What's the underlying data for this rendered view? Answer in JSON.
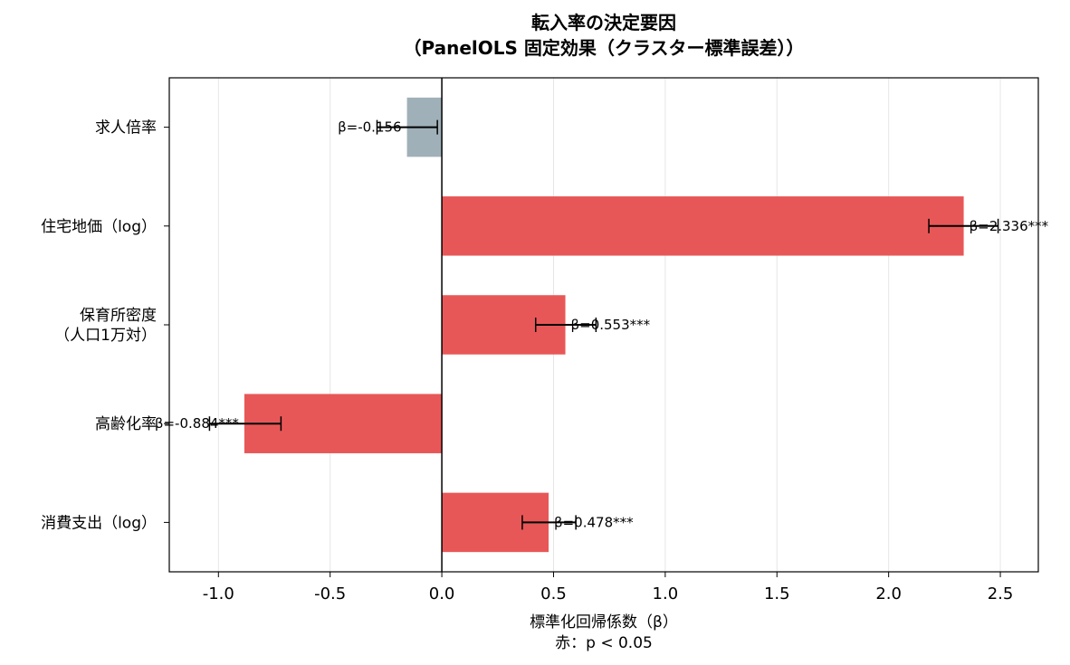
{
  "chart_data": {
    "type": "bar",
    "orientation": "horizontal",
    "title": "転入率の決定要因",
    "subtitle": "（PanelOLS 固定効果（クラスター標準誤差））",
    "xlabel": "標準化回帰係数（β）",
    "xlabel_note": "赤：p < 0.05",
    "xlim": [
      -1.22,
      2.67
    ],
    "xticks": [
      "-1.0",
      "-0.5",
      "0.0",
      "0.5",
      "1.0",
      "1.5",
      "2.0",
      "2.5"
    ],
    "xtick_values": [
      -1.0,
      -0.5,
      0.0,
      0.5,
      1.0,
      1.5,
      2.0,
      2.5
    ],
    "grid": "x",
    "categories": [
      {
        "lines": [
          "求人倍率"
        ]
      },
      {
        "lines": [
          "住宅地価（log）"
        ]
      },
      {
        "lines": [
          "保育所密度",
          "（人口1万対）"
        ]
      },
      {
        "lines": [
          "高齢化率"
        ]
      },
      {
        "lines": [
          "消費支出（log）"
        ]
      }
    ],
    "values": [
      -0.156,
      2.336,
      0.553,
      -0.884,
      0.478
    ],
    "error_low": [
      -0.29,
      2.18,
      0.42,
      -1.04,
      0.36
    ],
    "error_high": [
      -0.02,
      2.49,
      0.69,
      -0.72,
      0.6
    ],
    "significant": [
      false,
      true,
      true,
      true,
      true
    ],
    "value_labels": [
      "β=-0.156",
      "β=2.336***",
      "β=0.553***",
      "β=-0.884***",
      "β=0.478***"
    ],
    "colors": {
      "significant": "#e85757",
      "not_significant": "#a0b0b8",
      "zero_line": "#000000",
      "grid": "#e6e6e6"
    }
  }
}
